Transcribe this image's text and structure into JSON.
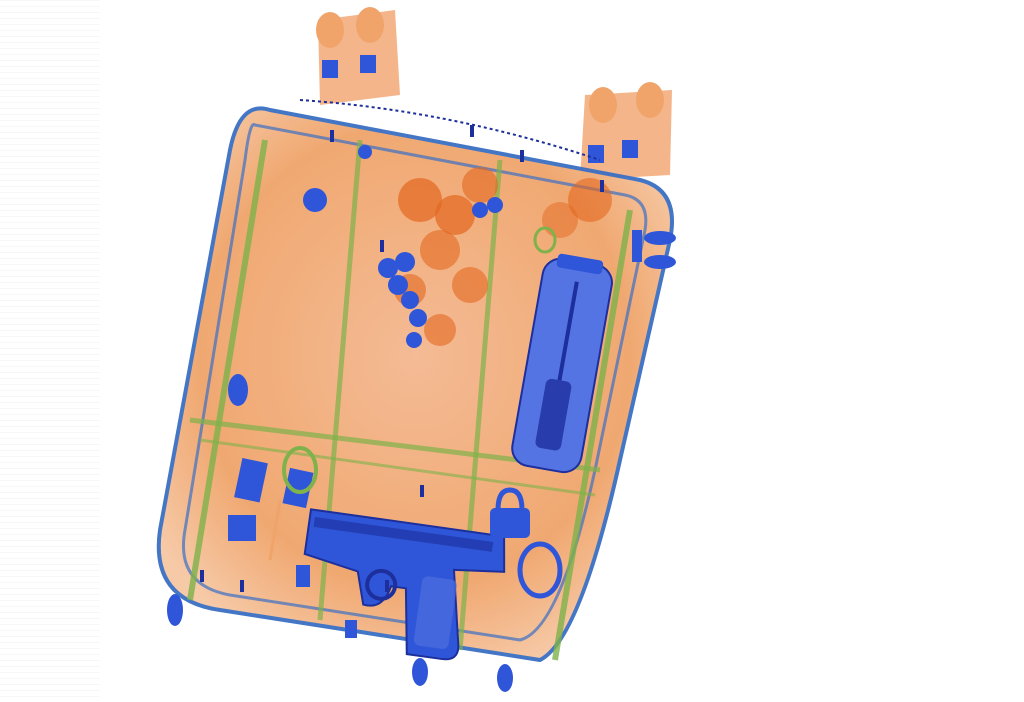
{
  "image": {
    "subject": "x-ray-scan-of-backpack",
    "palette": {
      "background": "#ffffff",
      "organic": "#f0a46a",
      "organic_dark": "#e2671f",
      "mixed": "#7fb24a",
      "metal": "#2f56d8",
      "metal_dark": "#1d2f9c",
      "outline": "#3b6fc4"
    },
    "icons": [
      "handgun-icon",
      "bottle-icon",
      "padlock-icon",
      "zipper-pull-icon",
      "buckle-icon",
      "keychain-icon"
    ]
  }
}
